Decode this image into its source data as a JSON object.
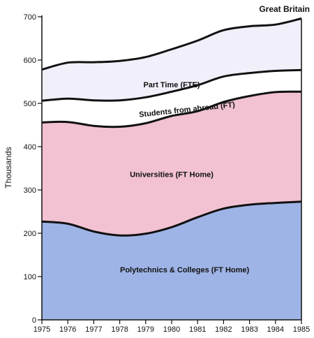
{
  "chart_data": {
    "type": "area",
    "title": "Great Britain",
    "xlabel": "",
    "ylabel": "Thousands",
    "x": [
      1975,
      1976,
      1977,
      1978,
      1979,
      1980,
      1981,
      1982,
      1983,
      1984,
      1985
    ],
    "ylim": [
      0,
      700
    ],
    "yticks": [
      0,
      100,
      200,
      300,
      400,
      500,
      600,
      700
    ],
    "stacked": true,
    "grid": false,
    "legend": "none",
    "series": [
      {
        "name": "Polytechnics & Colleges (FT Home)",
        "color": "#9fb4e6",
        "values": [
          227,
          222,
          204,
          195,
          199,
          214,
          237,
          257,
          266,
          270,
          273
        ]
      },
      {
        "name": "Universities (FT Home)",
        "color": "#f2c2d2",
        "values": [
          229,
          235,
          244,
          251,
          255,
          257,
          245,
          246,
          251,
          256,
          254
        ]
      },
      {
        "name": "Students from abroad (FT)",
        "color": "#ffffff",
        "values": [
          50,
          54,
          59,
          61,
          60,
          56,
          60,
          59,
          53,
          49,
          50
        ]
      },
      {
        "name": "Part Time (FTE)",
        "color": "#f1f0fa",
        "values": [
          72,
          83,
          88,
          91,
          93,
          98,
          103,
          107,
          108,
          107,
          119
        ]
      }
    ],
    "labels": [
      {
        "text": "Part Time (FTE)",
        "x": 1980,
        "y": 537
      },
      {
        "text": "Students from abroad (FT)",
        "x": 1980.6,
        "y": 480
      },
      {
        "text": "Universities (FT Home)",
        "x": 1980,
        "y": 330
      },
      {
        "text": "Polytechnics & Colleges (FT Home)",
        "x": 1980.5,
        "y": 110
      }
    ]
  }
}
